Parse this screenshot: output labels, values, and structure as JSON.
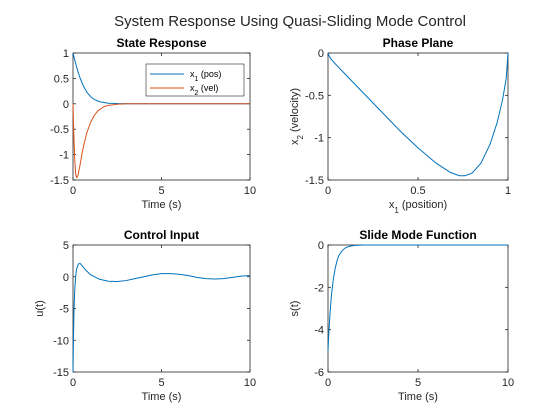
{
  "suptitle": "System Response Using Quasi-Sliding Mode Control",
  "colors": {
    "blue": "#0072bd",
    "orange": "#d95319",
    "axis": "#262626"
  },
  "chart_data": [
    {
      "type": "line",
      "title": "State Response",
      "xlabel": "Time (s)",
      "ylabel": "",
      "xlim": [
        0,
        10
      ],
      "ylim": [
        -1.5,
        1
      ],
      "xticks": [
        0,
        5,
        10
      ],
      "xtick_labels": [
        "0",
        "5",
        "10"
      ],
      "yticks": [
        -1.5,
        -1,
        -0.5,
        0,
        0.5,
        1
      ],
      "ytick_labels": [
        "-1.5",
        "-1",
        "-0.5",
        "0",
        "0.5",
        "1"
      ],
      "legend": {
        "placement": "top-right",
        "labels": [
          [
            "x",
            "1",
            " (pos)"
          ],
          [
            "x",
            "2",
            " (vel)"
          ]
        ]
      },
      "series": [
        {
          "color": "#0072bd",
          "x": [
            0,
            0.1,
            0.2,
            0.3,
            0.4,
            0.5,
            0.6,
            0.8,
            1.0,
            1.2,
            1.5,
            2.0,
            2.5,
            3,
            4,
            5,
            6,
            7,
            8,
            9,
            10
          ],
          "y": [
            1,
            0.86,
            0.73,
            0.61,
            0.51,
            0.42,
            0.34,
            0.22,
            0.14,
            0.085,
            0.04,
            0.012,
            0.005,
            0.002,
            0,
            0,
            0,
            0,
            0,
            0,
            0
          ]
        },
        {
          "color": "#d95319",
          "x": [
            0,
            0.05,
            0.1,
            0.15,
            0.2,
            0.25,
            0.3,
            0.4,
            0.5,
            0.6,
            0.7,
            0.8,
            1.0,
            1.2,
            1.4,
            1.6,
            1.8,
            2.0,
            2.5,
            3,
            4,
            5,
            6,
            7,
            8,
            9,
            10
          ],
          "y": [
            0,
            -0.65,
            -1.1,
            -1.38,
            -1.45,
            -1.44,
            -1.38,
            -1.2,
            -1.0,
            -0.83,
            -0.68,
            -0.55,
            -0.36,
            -0.23,
            -0.14,
            -0.09,
            -0.05,
            -0.03,
            -0.01,
            0,
            0,
            0,
            0,
            0,
            0,
            0,
            0
          ]
        }
      ]
    },
    {
      "type": "line",
      "title": "Phase Plane",
      "xlabel_parts": [
        "x",
        "1",
        "  (position)"
      ],
      "ylabel_parts": [
        "x",
        "2",
        "  (velocity)"
      ],
      "xlim": [
        0,
        1
      ],
      "ylim": [
        -1.5,
        0
      ],
      "xticks": [
        0,
        0.5,
        1
      ],
      "xtick_labels": [
        "0",
        "0.5",
        "1"
      ],
      "yticks": [
        -1.5,
        -1,
        -0.5,
        0
      ],
      "ytick_labels": [
        "-1.5",
        "-1",
        "-0.5",
        "0"
      ],
      "series": [
        {
          "color": "#0072bd",
          "x": [
            0,
            0.005,
            0.02,
            0.05,
            0.1,
            0.2,
            0.3,
            0.4,
            0.5,
            0.6,
            0.68,
            0.73,
            0.76,
            0.8,
            0.85,
            0.9,
            0.94,
            0.97,
            0.99,
            1.0
          ],
          "y": [
            0,
            -0.03,
            -0.08,
            -0.15,
            -0.26,
            -0.48,
            -0.7,
            -0.92,
            -1.12,
            -1.3,
            -1.41,
            -1.45,
            -1.45,
            -1.42,
            -1.3,
            -1.08,
            -0.82,
            -0.55,
            -0.3,
            0
          ]
        }
      ]
    },
    {
      "type": "line",
      "title": "Control Input",
      "xlabel": "Time (s)",
      "ylabel": "u(t)",
      "xlim": [
        0,
        10
      ],
      "ylim": [
        -15,
        5
      ],
      "xticks": [
        0,
        5,
        10
      ],
      "xtick_labels": [
        "0",
        "5",
        "10"
      ],
      "yticks": [
        -15,
        -10,
        -5,
        0,
        5
      ],
      "ytick_labels": [
        "-15",
        "-10",
        "-5",
        "0",
        "5"
      ],
      "series": [
        {
          "color": "#0072bd",
          "x": [
            0,
            0.03,
            0.06,
            0.1,
            0.15,
            0.2,
            0.3,
            0.4,
            0.5,
            0.7,
            1.0,
            1.5,
            2.0,
            2.5,
            3.0,
            3.5,
            4.0,
            4.5,
            5.0,
            5.5,
            6.0,
            6.5,
            7.0,
            7.5,
            8.0,
            8.5,
            9.0,
            9.5,
            10.0
          ],
          "y": [
            -15,
            -9,
            -5,
            -2,
            0,
            1.2,
            2.0,
            2.1,
            1.8,
            1.1,
            0.3,
            -0.4,
            -0.7,
            -0.75,
            -0.6,
            -0.3,
            0,
            0.3,
            0.5,
            0.5,
            0.4,
            0.2,
            -0.1,
            -0.3,
            -0.35,
            -0.3,
            -0.1,
            0.1,
            0.2
          ]
        }
      ]
    },
    {
      "type": "line",
      "title": "Slide Mode Function",
      "xlabel": "Time (s)",
      "ylabel": "s(t)",
      "xlim": [
        0,
        10
      ],
      "ylim": [
        -6,
        0
      ],
      "xticks": [
        0,
        5,
        10
      ],
      "xtick_labels": [
        "0",
        "5",
        "10"
      ],
      "yticks": [
        -6,
        -4,
        -2,
        0
      ],
      "ytick_labels": [
        "-6",
        "-4",
        "-2",
        "0"
      ],
      "series": [
        {
          "color": "#0072bd",
          "x": [
            0,
            0.05,
            0.1,
            0.15,
            0.2,
            0.3,
            0.4,
            0.5,
            0.6,
            0.8,
            1.0,
            1.2,
            1.5,
            2,
            3,
            4,
            5,
            6,
            7,
            8,
            9,
            10
          ],
          "y": [
            -5,
            -4.1,
            -3.4,
            -2.8,
            -2.3,
            -1.6,
            -1.1,
            -0.75,
            -0.5,
            -0.25,
            -0.12,
            -0.06,
            -0.02,
            0,
            0,
            0,
            0,
            0,
            0,
            0,
            0,
            0
          ]
        }
      ]
    }
  ]
}
